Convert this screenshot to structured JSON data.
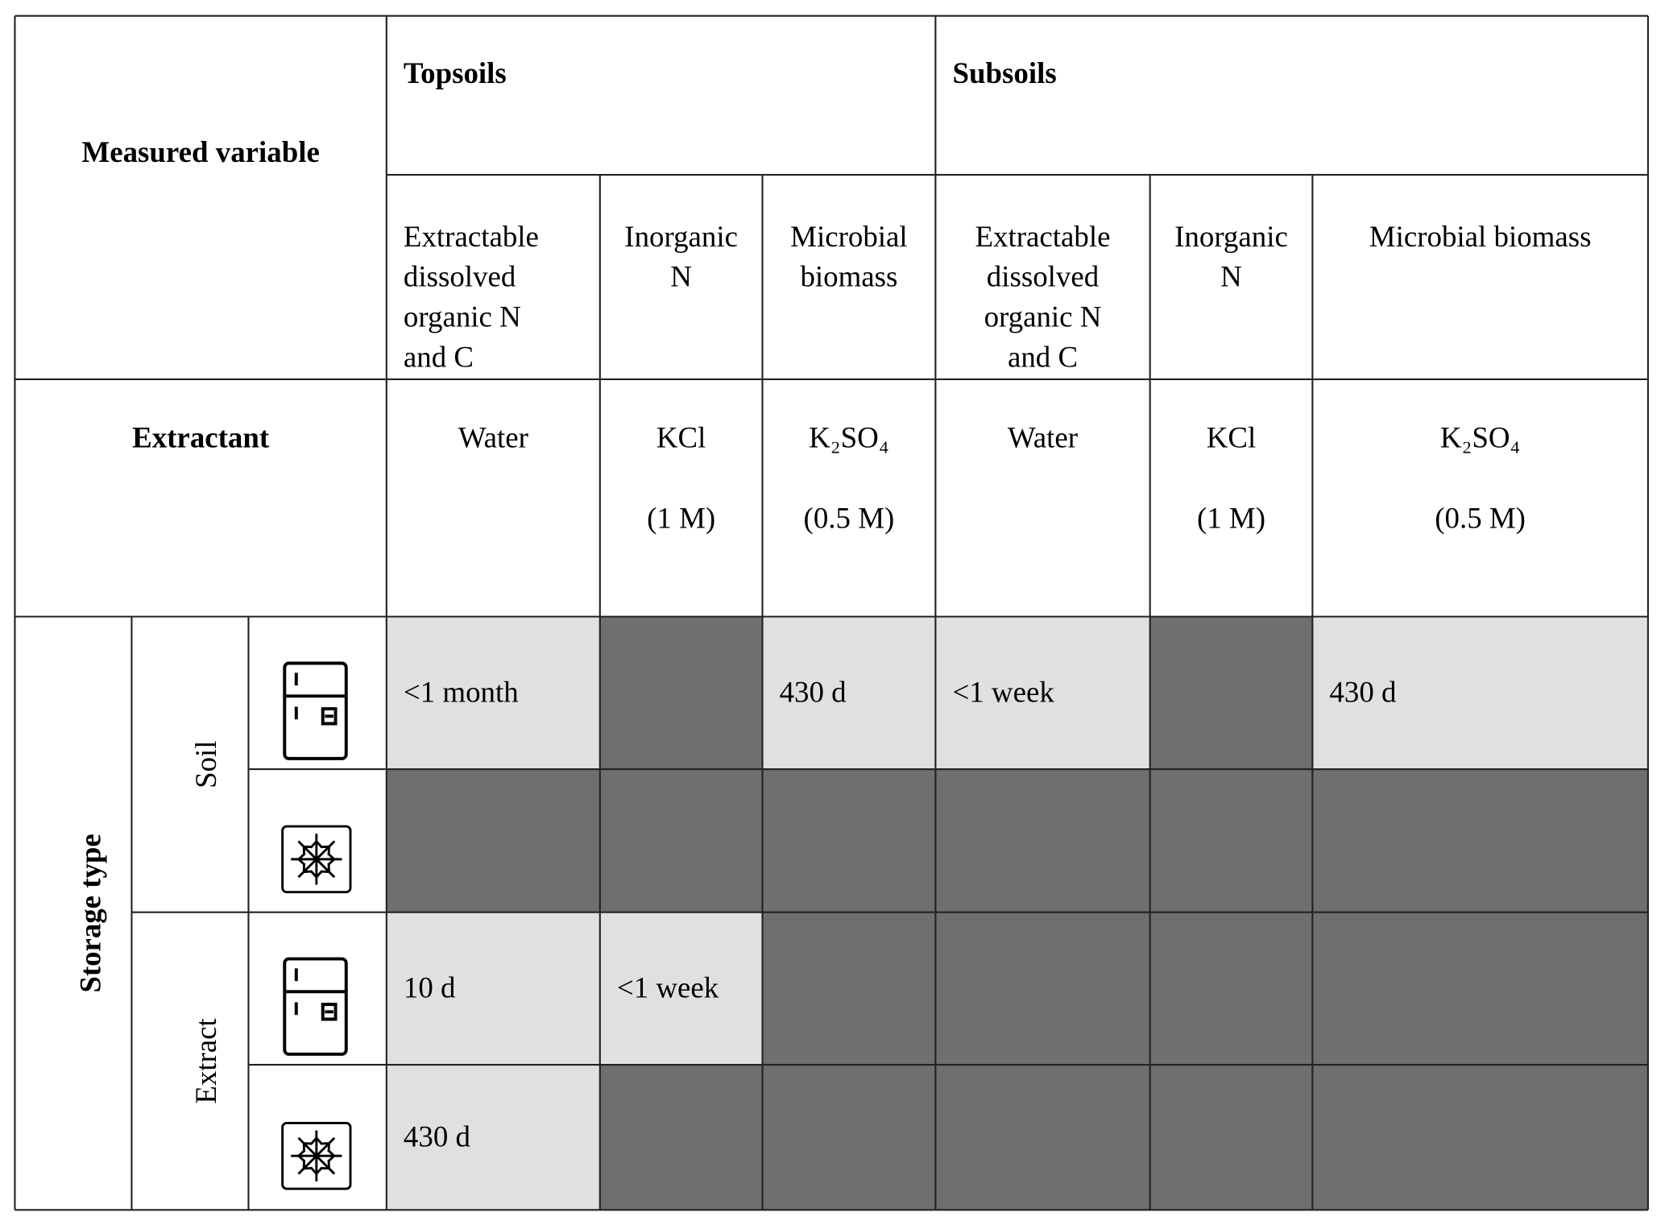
{
  "table": {
    "corner_label": "Measured variable",
    "groups": [
      "Topsoils",
      "Subsoils"
    ],
    "variables": [
      [
        "Extractable",
        "dissolved",
        "organic N",
        "and C"
      ],
      [
        "Inorganic",
        "N"
      ],
      [
        "Microbial",
        "biomass"
      ],
      [
        "Extractable",
        "dissolved",
        "organic N",
        "and C"
      ],
      [
        "Inorganic",
        "N"
      ],
      [
        "Microbial biomass"
      ]
    ],
    "extractant_label": "Extractant",
    "extractants": [
      [
        "Water"
      ],
      [
        "KCl",
        "(1 M)"
      ],
      [
        "K₂SO₄",
        "(0.5 M)"
      ],
      [
        "Water"
      ],
      [
        "KCl",
        "(1 M)"
      ],
      [
        "K₂SO₄",
        "(0.5 M)"
      ]
    ],
    "storage_label": "Storage type",
    "storage_groups": [
      "Soil",
      "Extract"
    ],
    "rows": [
      [
        "<1 month",
        null,
        "430 d",
        "<1 week",
        null,
        "430 d"
      ],
      [
        null,
        null,
        null,
        null,
        null,
        null
      ],
      [
        "10 d",
        "<1 week",
        null,
        null,
        null,
        null
      ],
      [
        "430 d",
        null,
        null,
        null,
        null,
        null
      ]
    ]
  }
}
